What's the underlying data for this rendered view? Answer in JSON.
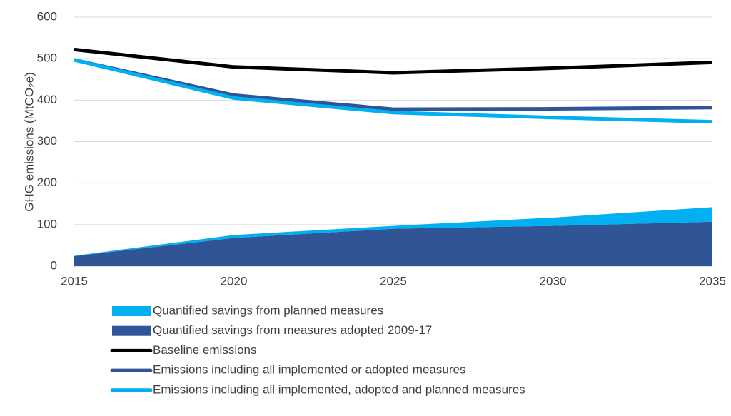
{
  "chart_data": {
    "type": "line",
    "y_label": "GHG emissions (MtCO₂e)",
    "x": [
      2015,
      2020,
      2025,
      2030,
      2035
    ],
    "xlim": [
      2015,
      2035
    ],
    "xticks": [
      2015,
      2020,
      2025,
      2030,
      2035
    ],
    "ylim": [
      0,
      600
    ],
    "yticks": [
      0,
      100,
      200,
      300,
      400,
      500,
      600
    ],
    "grid": true,
    "series": [
      {
        "name": "Quantified savings from planned measures",
        "type": "area",
        "color": "#00b0f0",
        "values": [
          1,
          7,
          7,
          20,
          35
        ]
      },
      {
        "name": "Quantified savings from measures adopted 2009-17",
        "type": "area",
        "color": "#2f5597",
        "values": [
          24,
          68,
          90,
          97,
          107
        ]
      },
      {
        "name": "Baseline emissions",
        "type": "line",
        "color": "#000000",
        "values": [
          522,
          480,
          466,
          477,
          491
        ]
      },
      {
        "name": "Emissions including all implemented or adopted measures",
        "type": "line",
        "color": "#2f5597",
        "values": [
          497,
          412,
          378,
          379,
          382
        ]
      },
      {
        "name": "Emissions including all implemented, adopted and planned measures",
        "type": "line",
        "color": "#00b0f0",
        "values": [
          497,
          405,
          370,
          358,
          348
        ]
      }
    ]
  }
}
